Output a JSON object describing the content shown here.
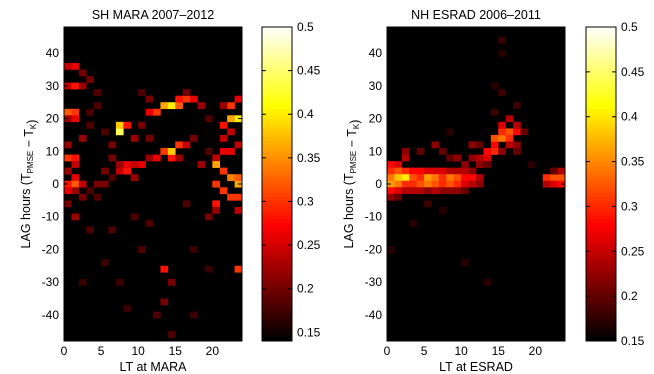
{
  "chart_data": [
    {
      "type": "heatmap",
      "title": "SH MARA 2007–2012",
      "xlabel": "LT at MARA",
      "ylabel": {
        "pre": "LAG   hours (T",
        "sub1": "PMSE",
        "mid": " − T",
        "sub2": "K",
        "post": ")"
      },
      "xlim": [
        0,
        24
      ],
      "ylim": [
        -48,
        48
      ],
      "xticks": [
        0,
        5,
        10,
        15,
        20
      ],
      "yticks": [
        -40,
        -30,
        -20,
        -10,
        0,
        10,
        20,
        30,
        40
      ],
      "colorbar": {
        "range": [
          0.14,
          0.5
        ],
        "ticks": [
          "0.5",
          "0.45",
          "0.4",
          "0.35",
          "0.3",
          "0.25",
          "0.2",
          "0.15"
        ],
        "tick_values": [
          0.5,
          0.45,
          0.4,
          0.35,
          0.3,
          0.25,
          0.2,
          0.15
        ]
      },
      "colormap": "hot",
      "bin_width_hours": 1,
      "bin_height_hours": 2,
      "background_value": 0.14,
      "cells": [
        [
          0,
          36,
          0.24
        ],
        [
          1,
          36,
          0.26
        ],
        [
          2,
          34,
          0.2
        ],
        [
          0,
          30,
          0.24
        ],
        [
          1,
          30,
          0.28
        ],
        [
          2,
          30,
          0.22
        ],
        [
          3,
          32,
          0.2
        ],
        [
          4,
          28,
          0.18
        ],
        [
          0,
          22,
          0.32
        ],
        [
          1,
          22,
          0.3
        ],
        [
          0,
          20,
          0.22
        ],
        [
          1,
          20,
          0.26
        ],
        [
          3,
          22,
          0.18
        ],
        [
          3,
          18,
          0.18
        ],
        [
          2,
          14,
          0.22
        ],
        [
          0,
          12,
          0.22
        ],
        [
          0,
          8,
          0.3
        ],
        [
          1,
          8,
          0.28
        ],
        [
          1,
          6,
          0.24
        ],
        [
          0,
          4,
          0.22
        ],
        [
          1,
          2,
          0.26
        ],
        [
          0,
          0,
          0.28
        ],
        [
          1,
          0,
          0.32
        ],
        [
          2,
          0,
          0.24
        ],
        [
          0,
          -2,
          0.26
        ],
        [
          1,
          -2,
          0.22
        ],
        [
          0,
          -6,
          0.2
        ],
        [
          1,
          -10,
          0.22
        ],
        [
          2,
          -4,
          0.2
        ],
        [
          3,
          -2,
          0.18
        ],
        [
          4,
          0,
          0.2
        ],
        [
          4,
          -4,
          0.18
        ],
        [
          5,
          4,
          0.2
        ],
        [
          5,
          0,
          0.2
        ],
        [
          6,
          2,
          0.18
        ],
        [
          7,
          4,
          0.24
        ],
        [
          7,
          6,
          0.22
        ],
        [
          8,
          4,
          0.28
        ],
        [
          8,
          6,
          0.26
        ],
        [
          9,
          2,
          0.22
        ],
        [
          9,
          6,
          0.24
        ],
        [
          10,
          6,
          0.26
        ],
        [
          11,
          8,
          0.22
        ],
        [
          12,
          8,
          0.26
        ],
        [
          13,
          10,
          0.3
        ],
        [
          14,
          8,
          0.28
        ],
        [
          14,
          10,
          0.38
        ],
        [
          15,
          12,
          0.3
        ],
        [
          15,
          8,
          0.22
        ],
        [
          16,
          12,
          0.24
        ],
        [
          7,
          16,
          0.44
        ],
        [
          7,
          18,
          0.38
        ],
        [
          8,
          18,
          0.28
        ],
        [
          9,
          14,
          0.22
        ],
        [
          6,
          12,
          0.2
        ],
        [
          10,
          18,
          0.2
        ],
        [
          11,
          22,
          0.26
        ],
        [
          12,
          22,
          0.3
        ],
        [
          13,
          24,
          0.36
        ],
        [
          14,
          24,
          0.4
        ],
        [
          15,
          24,
          0.32
        ],
        [
          15,
          26,
          0.28
        ],
        [
          16,
          26,
          0.3
        ],
        [
          17,
          26,
          0.26
        ],
        [
          18,
          24,
          0.22
        ],
        [
          11,
          26,
          0.2
        ],
        [
          17,
          14,
          0.2
        ],
        [
          18,
          6,
          0.22
        ],
        [
          19,
          10,
          0.18
        ],
        [
          19,
          20,
          0.18
        ],
        [
          20,
          8,
          0.24
        ],
        [
          20,
          6,
          0.36
        ],
        [
          20,
          0,
          0.3
        ],
        [
          20,
          -6,
          0.28
        ],
        [
          21,
          -2,
          0.3
        ],
        [
          21,
          4,
          0.3
        ],
        [
          21,
          10,
          0.26
        ],
        [
          21,
          14,
          0.24
        ],
        [
          21,
          18,
          0.28
        ],
        [
          22,
          20,
          0.36
        ],
        [
          22,
          24,
          0.3
        ],
        [
          22,
          2,
          0.34
        ],
        [
          22,
          -4,
          0.3
        ],
        [
          23,
          0,
          0.36
        ],
        [
          23,
          2,
          0.32
        ],
        [
          23,
          -4,
          0.3
        ],
        [
          23,
          -8,
          0.24
        ],
        [
          23,
          20,
          0.4
        ],
        [
          23,
          26,
          0.26
        ],
        [
          22,
          10,
          0.26
        ],
        [
          22,
          16,
          0.24
        ],
        [
          21,
          24,
          0.22
        ],
        [
          20,
          -8,
          0.22
        ],
        [
          23,
          12,
          0.24
        ],
        [
          13,
          -26,
          0.28
        ],
        [
          14,
          -30,
          0.2
        ],
        [
          13,
          -36,
          0.2
        ],
        [
          12,
          -40,
          0.18
        ],
        [
          10,
          -20,
          0.18
        ],
        [
          14,
          -46,
          0.18
        ],
        [
          8,
          -38,
          0.17
        ],
        [
          7,
          -30,
          0.17
        ],
        [
          5,
          -24,
          0.17
        ],
        [
          17,
          -40,
          0.17
        ],
        [
          11,
          -12,
          0.18
        ],
        [
          9,
          -10,
          0.18
        ],
        [
          6,
          -14,
          0.18
        ],
        [
          3,
          -14,
          0.18
        ],
        [
          16,
          -6,
          0.18
        ],
        [
          17,
          -20,
          0.17
        ],
        [
          19,
          -10,
          0.2
        ],
        [
          23,
          -26,
          0.3
        ],
        [
          2,
          -30,
          0.17
        ],
        [
          19,
          -26,
          0.17
        ],
        [
          16,
          28,
          0.2
        ],
        [
          10,
          28,
          0.18
        ],
        [
          11,
          14,
          0.2
        ],
        [
          5,
          16,
          0.18
        ],
        [
          4,
          24,
          0.18
        ],
        [
          6,
          8,
          0.2
        ]
      ]
    },
    {
      "type": "heatmap",
      "title": "NH ESRAD 2006–2011",
      "xlabel": "LT at ESRAD",
      "ylabel": {
        "pre": "LAG   hours (T",
        "sub1": "PMSE",
        "mid": " − T",
        "sub2": "K",
        "post": ")"
      },
      "xlim": [
        0,
        24
      ],
      "ylim": [
        -48,
        48
      ],
      "xticks": [
        0,
        5,
        10,
        15,
        20
      ],
      "yticks": [
        -40,
        -30,
        -20,
        -10,
        0,
        10,
        20,
        30,
        40
      ],
      "colorbar": {
        "range": [
          0.15,
          0.5
        ],
        "ticks": [
          "0.5",
          "0.45",
          "0.4",
          "0.35",
          "0.3",
          "0.25",
          "0.2",
          "0.15"
        ],
        "tick_values": [
          0.5,
          0.45,
          0.4,
          0.35,
          0.3,
          0.25,
          0.2,
          0.15
        ]
      },
      "colormap": "hot",
      "bin_width_hours": 1,
      "bin_height_hours": 2,
      "background_value": 0.15,
      "cells": [
        [
          0,
          6,
          0.28
        ],
        [
          1,
          6,
          0.26
        ],
        [
          2,
          8,
          0.24
        ],
        [
          0,
          4,
          0.3
        ],
        [
          1,
          4,
          0.32
        ],
        [
          2,
          4,
          0.3
        ],
        [
          3,
          4,
          0.28
        ],
        [
          4,
          4,
          0.28
        ],
        [
          5,
          4,
          0.26
        ],
        [
          6,
          4,
          0.26
        ],
        [
          7,
          4,
          0.26
        ],
        [
          8,
          4,
          0.24
        ],
        [
          9,
          4,
          0.24
        ],
        [
          10,
          4,
          0.24
        ],
        [
          11,
          4,
          0.22
        ],
        [
          0,
          2,
          0.34
        ],
        [
          1,
          2,
          0.38
        ],
        [
          2,
          2,
          0.4
        ],
        [
          3,
          2,
          0.32
        ],
        [
          4,
          2,
          0.3
        ],
        [
          5,
          2,
          0.36
        ],
        [
          6,
          2,
          0.34
        ],
        [
          7,
          2,
          0.3
        ],
        [
          8,
          2,
          0.34
        ],
        [
          9,
          2,
          0.32
        ],
        [
          10,
          2,
          0.28
        ],
        [
          11,
          2,
          0.28
        ],
        [
          12,
          2,
          0.24
        ],
        [
          0,
          0,
          0.36
        ],
        [
          1,
          0,
          0.34
        ],
        [
          2,
          0,
          0.3
        ],
        [
          3,
          0,
          0.3
        ],
        [
          4,
          0,
          0.32
        ],
        [
          5,
          0,
          0.34
        ],
        [
          6,
          0,
          0.32
        ],
        [
          7,
          0,
          0.3
        ],
        [
          8,
          0,
          0.32
        ],
        [
          9,
          0,
          0.3
        ],
        [
          10,
          0,
          0.26
        ],
        [
          11,
          0,
          0.24
        ],
        [
          12,
          0,
          0.22
        ],
        [
          0,
          -2,
          0.28
        ],
        [
          1,
          -2,
          0.26
        ],
        [
          2,
          -2,
          0.24
        ],
        [
          3,
          -2,
          0.24
        ],
        [
          4,
          -2,
          0.24
        ],
        [
          5,
          -2,
          0.22
        ],
        [
          6,
          -2,
          0.24
        ],
        [
          7,
          -2,
          0.22
        ],
        [
          8,
          -2,
          0.22
        ],
        [
          9,
          -2,
          0.22
        ],
        [
          10,
          -2,
          0.2
        ],
        [
          0,
          -4,
          0.22
        ],
        [
          1,
          -4,
          0.2
        ],
        [
          5,
          -6,
          0.18
        ],
        [
          2,
          10,
          0.22
        ],
        [
          4,
          10,
          0.2
        ],
        [
          6,
          12,
          0.22
        ],
        [
          7,
          10,
          0.2
        ],
        [
          8,
          8,
          0.2
        ],
        [
          9,
          8,
          0.22
        ],
        [
          10,
          6,
          0.22
        ],
        [
          11,
          8,
          0.22
        ],
        [
          12,
          8,
          0.24
        ],
        [
          12,
          6,
          0.22
        ],
        [
          13,
          8,
          0.26
        ],
        [
          13,
          10,
          0.28
        ],
        [
          14,
          10,
          0.3
        ],
        [
          14,
          12,
          0.28
        ],
        [
          14,
          14,
          0.32
        ],
        [
          15,
          14,
          0.34
        ],
        [
          15,
          16,
          0.3
        ],
        [
          16,
          16,
          0.32
        ],
        [
          16,
          14,
          0.3
        ],
        [
          17,
          16,
          0.28
        ],
        [
          17,
          18,
          0.24
        ],
        [
          16,
          20,
          0.24
        ],
        [
          15,
          18,
          0.26
        ],
        [
          13,
          6,
          0.2
        ],
        [
          12,
          12,
          0.2
        ],
        [
          11,
          12,
          0.22
        ],
        [
          15,
          10,
          0.22
        ],
        [
          16,
          12,
          0.24
        ],
        [
          17,
          12,
          0.22
        ],
        [
          18,
          16,
          0.2
        ],
        [
          17,
          10,
          0.2
        ],
        [
          21,
          2,
          0.3
        ],
        [
          22,
          2,
          0.32
        ],
        [
          23,
          2,
          0.32
        ],
        [
          21,
          0,
          0.24
        ],
        [
          22,
          0,
          0.26
        ],
        [
          23,
          0,
          0.28
        ],
        [
          23,
          4,
          0.24
        ],
        [
          22,
          4,
          0.2
        ],
        [
          15,
          44,
          0.18
        ],
        [
          15,
          40,
          0.17
        ],
        [
          10,
          -24,
          0.17
        ],
        [
          13,
          -30,
          0.17
        ],
        [
          7,
          -8,
          0.17
        ],
        [
          3,
          -12,
          0.17
        ],
        [
          0,
          -20,
          0.17
        ],
        [
          15,
          28,
          0.18
        ],
        [
          17,
          24,
          0.18
        ],
        [
          14,
          30,
          0.17
        ],
        [
          19,
          6,
          0.17
        ],
        [
          14,
          22,
          0.18
        ],
        [
          8,
          16,
          0.17
        ]
      ]
    }
  ]
}
